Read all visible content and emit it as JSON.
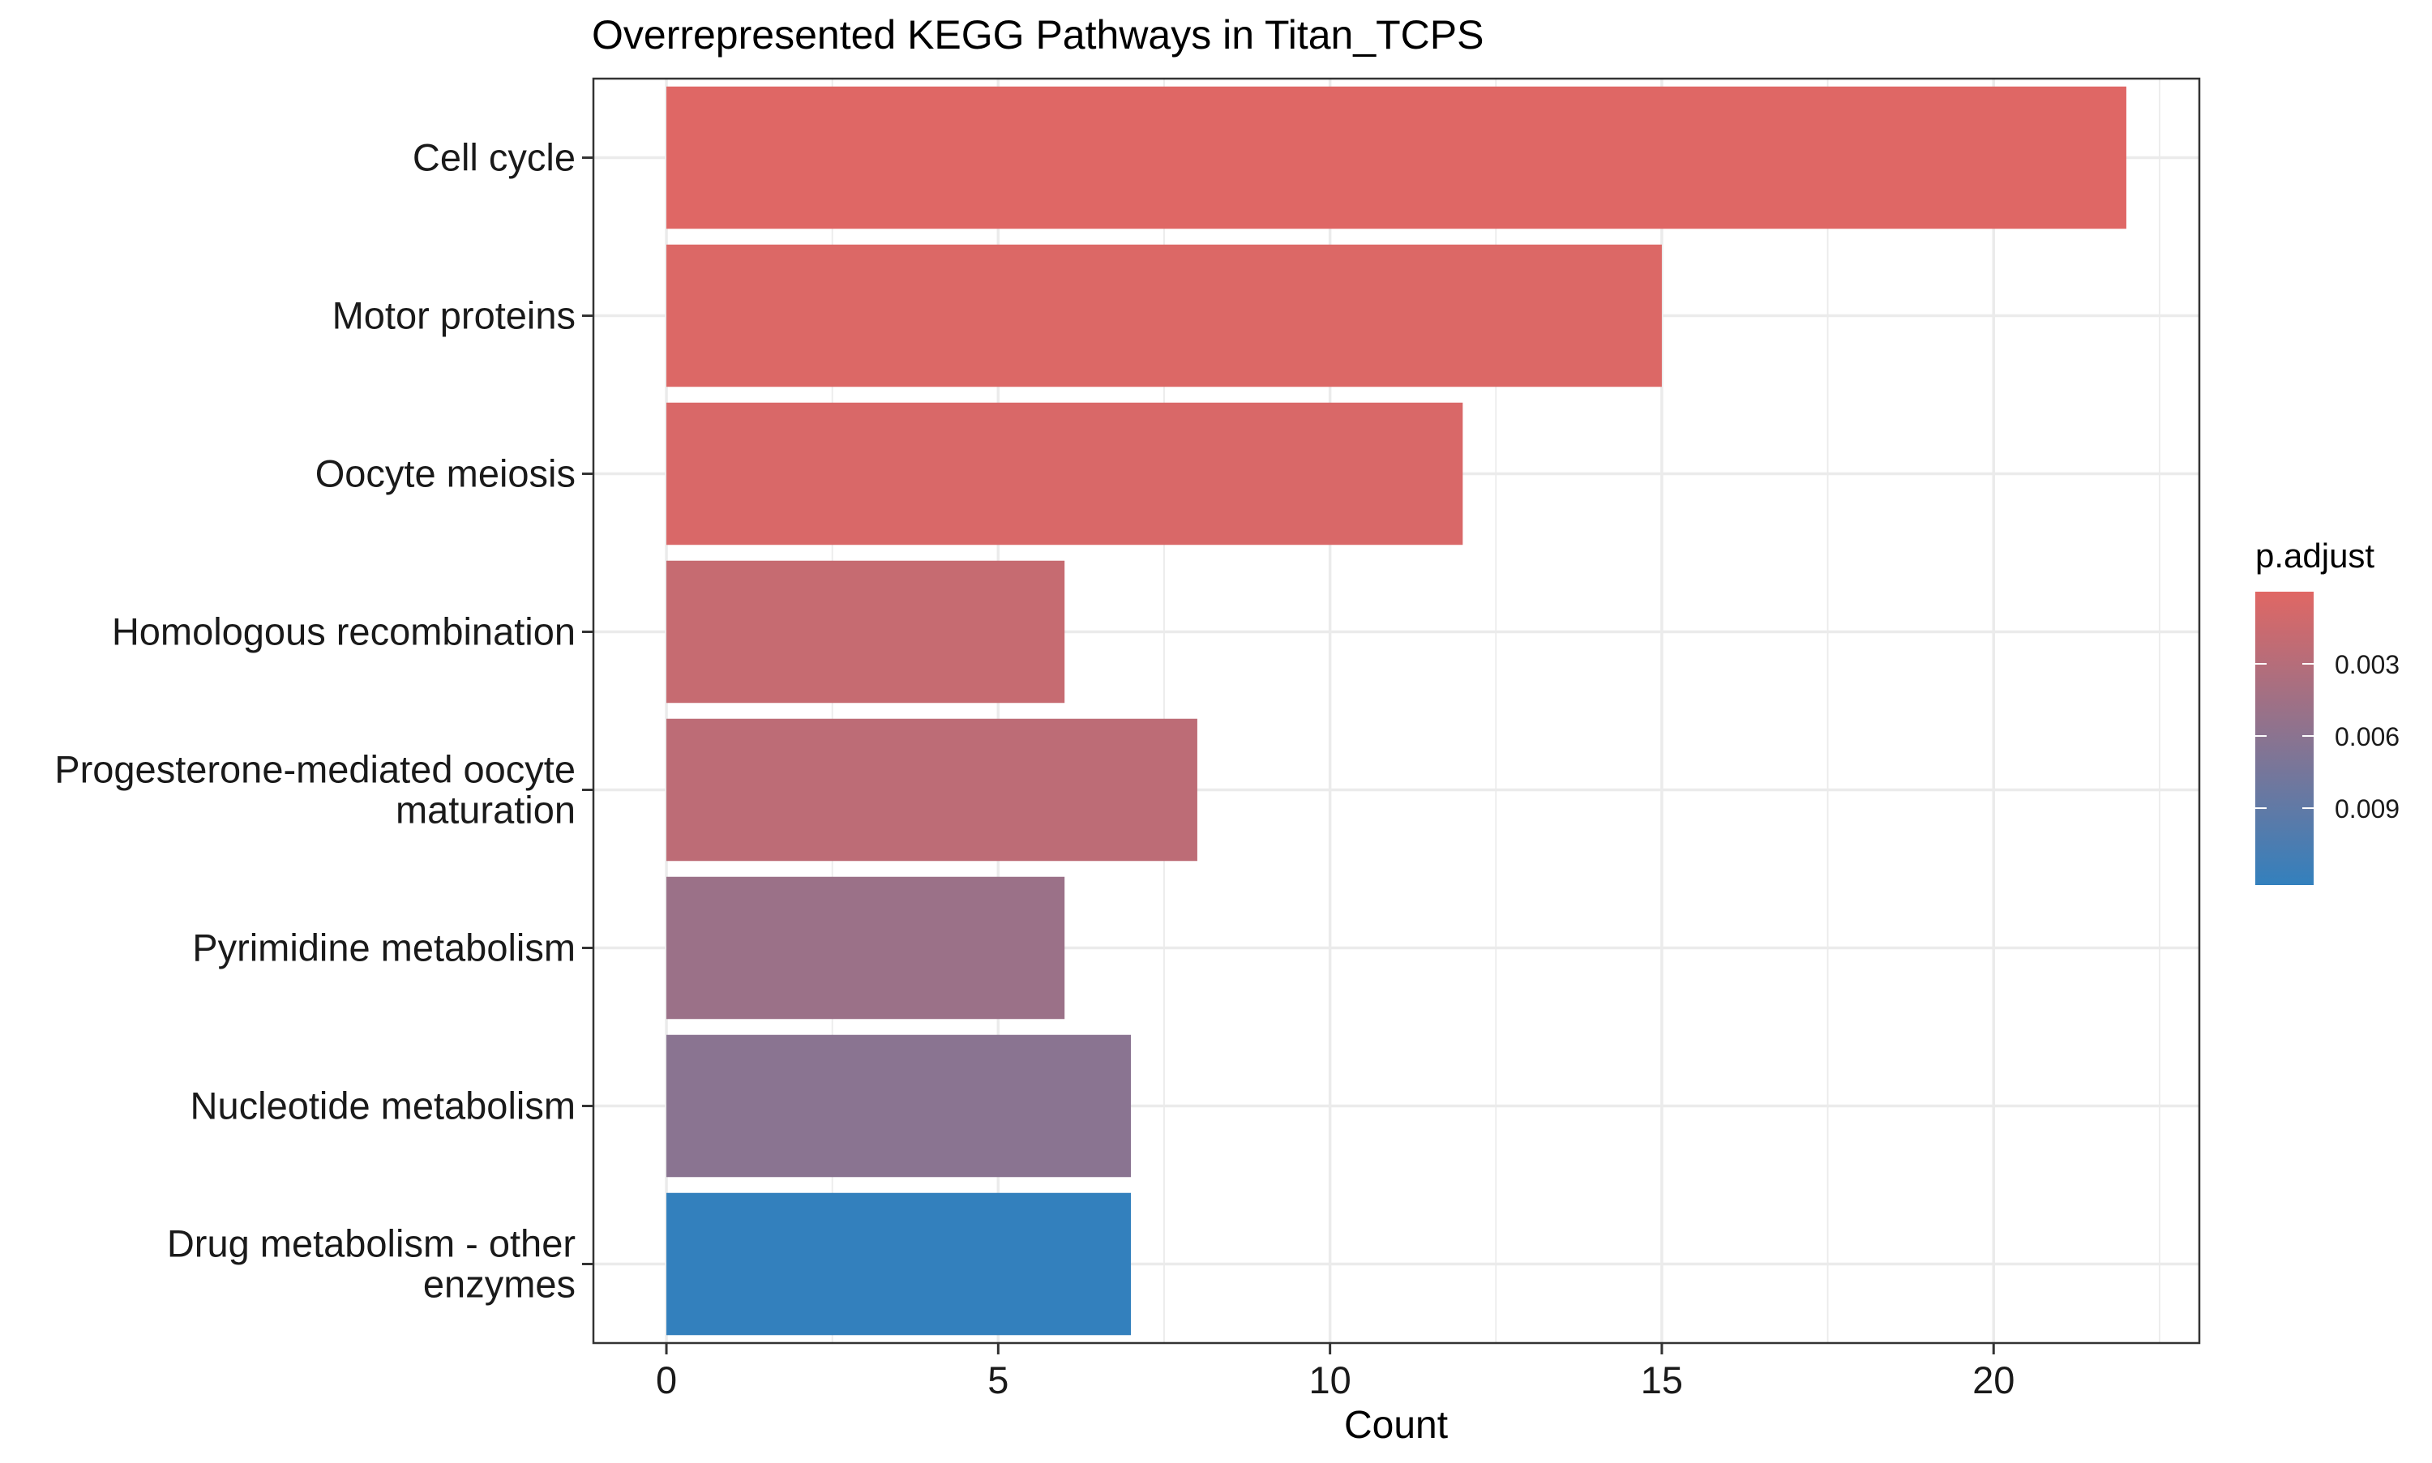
{
  "chart_data": {
    "type": "bar",
    "orientation": "horizontal",
    "title": "Overrepresented KEGG Pathways in Titan_TCPS",
    "xlabel": "Count",
    "ylabel": "",
    "xlim": [
      -1.1,
      23.1
    ],
    "xticks": [
      0,
      5,
      10,
      15,
      20
    ],
    "grid": true,
    "categories": [
      [
        "Cell cycle"
      ],
      [
        "Motor proteins"
      ],
      [
        "Oocyte meiosis"
      ],
      [
        "Homologous recombination"
      ],
      [
        "Progesterone-mediated oocyte",
        "maturation"
      ],
      [
        "Pyrimidine metabolism"
      ],
      [
        "Nucleotide metabolism"
      ],
      [
        "Drug metabolism - other",
        "enzymes"
      ]
    ],
    "values": [
      22,
      15,
      12,
      6,
      8,
      6,
      7,
      7
    ],
    "p_adjust": [
      7e-05,
      0.0003,
      0.0005,
      0.0018,
      0.0025,
      0.0049,
      0.0061,
      0.0122
    ],
    "legend": {
      "title": "p.adjust",
      "position": "right",
      "ticks": [
        0.003,
        0.006,
        0.009
      ],
      "tick_labels": [
        "0.003",
        "0.006",
        "0.009"
      ],
      "range": [
        0.0,
        0.0122
      ],
      "low_color": "#E06764",
      "high_color": "#3380BD"
    },
    "colors": {
      "low": "#E06764",
      "high": "#3380BD",
      "grid": "#EBEBEB",
      "axis": "#333333",
      "text": "#1a1a1a"
    }
  }
}
